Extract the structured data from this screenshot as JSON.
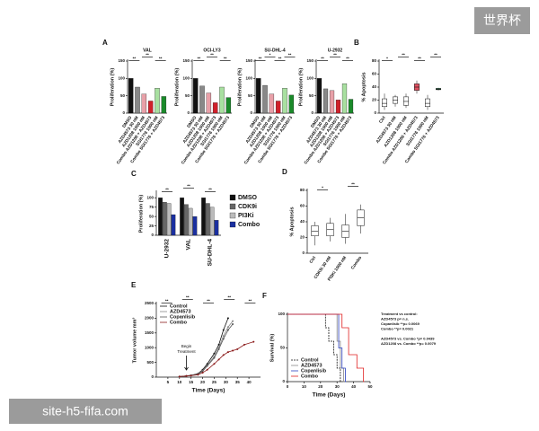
{
  "chart_data": [
    {
      "type": "bar",
      "panel": "A",
      "title": "VAL",
      "y_label": "Proliferation (%)",
      "ylim": [
        0,
        150
      ],
      "yticks": [
        0,
        50,
        100,
        150
      ],
      "categories": [
        "DMSO",
        "AZD4573 30 nM",
        "AZD1208 1000 nM",
        "Combo AZD1208 + AZD4573",
        "SGI1776 1000 nM",
        "Combo SGI1776 + AZD4573"
      ],
      "colors": [
        "#111111",
        "#888888",
        "#e8a0a8",
        "#d0202a",
        "#a8e0a0",
        "#1a8a2a"
      ],
      "values": [
        100,
        75,
        55,
        35,
        72,
        48
      ],
      "sig": [
        "**",
        "**",
        "**"
      ]
    },
    {
      "type": "bar",
      "title": "OCI-LY3",
      "y_label": "Proliferation (%)",
      "ylim": [
        0,
        150
      ],
      "yticks": [
        0,
        50,
        100,
        150
      ],
      "categories": [
        "DMSO",
        "AZD4573 30 nM",
        "AZD1208 1000 nM",
        "Combo AZD1208 + AZD4573",
        "SGI1776 1000 nM",
        "Combo SGI1776 + AZD4573"
      ],
      "colors": [
        "#111111",
        "#888888",
        "#e8a0a8",
        "#d0202a",
        "#a8e0a0",
        "#1a8a2a"
      ],
      "values": [
        100,
        78,
        58,
        30,
        75,
        45
      ],
      "sig": [
        "**",
        "**",
        "**"
      ]
    },
    {
      "type": "bar",
      "title": "SU-DHL-4",
      "y_label": "Proliferation (%)",
      "ylim": [
        0,
        150
      ],
      "yticks": [
        0,
        50,
        100,
        150
      ],
      "categories": [
        "DMSO",
        "AZD4573 30 nM",
        "AZD1208 1000 nM",
        "Combo AZD1208 + AZD4573",
        "SGI1776 1000 nM",
        "Combo SGI1776 + AZD4573"
      ],
      "colors": [
        "#111111",
        "#888888",
        "#e8a0a8",
        "#d0202a",
        "#a8e0a0",
        "#1a8a2a"
      ],
      "values": [
        100,
        80,
        55,
        35,
        72,
        52
      ],
      "sig": [
        "**",
        "*",
        "**",
        "**"
      ]
    },
    {
      "type": "bar",
      "title": "U-2932",
      "y_label": "Proliferation (%)",
      "ylim": [
        0,
        150
      ],
      "yticks": [
        0,
        50,
        100,
        150
      ],
      "categories": [
        "DMSO",
        "AZD4573 30 nM",
        "AZD1208 1000 nM",
        "Combo AZD1208 + AZD4573",
        "SGI1776 1000 nM",
        "Combo SGI1776 + AZD4573"
      ],
      "colors": [
        "#111111",
        "#888888",
        "#e8a0a8",
        "#d0202a",
        "#a8e0a0",
        "#1a8a2a"
      ],
      "values": [
        100,
        70,
        65,
        38,
        85,
        40
      ],
      "sig": [
        "**",
        "**",
        "**"
      ]
    },
    {
      "type": "box",
      "panel": "B",
      "y_label": "% Apoptosis",
      "ylim": [
        0,
        80
      ],
      "yticks": [
        0,
        20,
        40,
        60,
        80
      ],
      "categories": [
        "Ctrl",
        "AZD4573 30 nM",
        "AZD1208 1000 nM",
        "Combo AZD1208 + AZD4573",
        "SGI1776 1000 nM",
        "Combo SGI1776 + AZD4573"
      ],
      "colors": [
        "#ffffff",
        "#ffffff",
        "#ffffff",
        "#e05060",
        "#ffffff",
        "#1a8a4a"
      ],
      "boxes": [
        {
          "min": 5,
          "q1": 10,
          "median": 15,
          "q3": 22,
          "max": 30
        },
        {
          "min": 10,
          "q1": 15,
          "median": 20,
          "q3": 25,
          "max": 28
        },
        {
          "min": 8,
          "q1": 12,
          "median": 18,
          "q3": 25,
          "max": 30
        },
        {
          "min": 30,
          "q1": 35,
          "median": 40,
          "q3": 45,
          "max": 50
        },
        {
          "min": 5,
          "q1": 10,
          "median": 15,
          "q3": 22,
          "max": 28
        },
        {
          "min": 35,
          "q1": 36,
          "median": 37,
          "q3": 38,
          "max": 39
        }
      ],
      "sig": [
        "*",
        "**",
        "**",
        "**"
      ]
    },
    {
      "type": "bar",
      "panel": "C",
      "y_label": "Proliferation (%)",
      "ylim": [
        0,
        115
      ],
      "yticks": [
        0,
        25,
        50,
        75,
        100
      ],
      "categories": [
        "U-2932",
        "VAL",
        "SU-DHL-4"
      ],
      "series": [
        {
          "name": "DMSO",
          "color": "#111111",
          "values": [
            100,
            100,
            100
          ]
        },
        {
          "name": "CDK9i",
          "color": "#666666",
          "values": [
            88,
            82,
            85
          ]
        },
        {
          "name": "PI3Ki",
          "color": "#bbbbbb",
          "values": [
            85,
            72,
            75
          ]
        },
        {
          "name": "Combo",
          "color": "#1a2fa0",
          "values": [
            55,
            50,
            40
          ]
        }
      ],
      "sig": [
        "**",
        "**",
        "**"
      ]
    },
    {
      "type": "box",
      "panel": "D",
      "y_label": "% Apoptosis",
      "ylim": [
        0,
        80
      ],
      "yticks": [
        0,
        20,
        40,
        60,
        80
      ],
      "categories": [
        "Ctrl",
        "CDK9i 30 nM",
        "PI3Ki 1000 nM",
        "Combo"
      ],
      "colors": [
        "#ffffff",
        "#ffffff",
        "#ffffff",
        "#ffffff"
      ],
      "boxes": [
        {
          "min": 10,
          "q1": 22,
          "median": 28,
          "q3": 35,
          "max": 40
        },
        {
          "min": 15,
          "q1": 22,
          "median": 30,
          "q3": 38,
          "max": 45
        },
        {
          "min": 12,
          "q1": 20,
          "median": 28,
          "q3": 36,
          "max": 50
        },
        {
          "min": 25,
          "q1": 35,
          "median": 45,
          "q3": 55,
          "max": 62
        }
      ],
      "sig": [
        "*",
        "**"
      ]
    },
    {
      "type": "line",
      "panel": "E",
      "x_label": "Time (Days)",
      "y_label": "Tumor volume mm³",
      "xlim": [
        0,
        45
      ],
      "xticks": [
        5,
        10,
        15,
        20,
        25,
        30,
        35,
        40
      ],
      "ylim": [
        0,
        2500
      ],
      "yticks": [
        0,
        500,
        1000,
        1500,
        2000,
        2500
      ],
      "x": [
        10,
        13,
        15,
        18,
        20,
        22,
        25,
        27,
        29,
        31,
        33,
        35,
        38,
        42
      ],
      "series": [
        {
          "name": "Control",
          "color": "#111111",
          "values": [
            20,
            40,
            60,
            120,
            250,
            450,
            800,
            1100,
            1600,
            2000,
            null,
            null,
            null,
            null
          ]
        },
        {
          "name": "AZD4573",
          "color": "#888888",
          "values": [
            20,
            40,
            60,
            110,
            220,
            400,
            700,
            1000,
            1400,
            1700,
            1900,
            null,
            null,
            null
          ]
        },
        {
          "name": "Copanlisib",
          "color": "#555555",
          "values": [
            20,
            40,
            60,
            100,
            200,
            380,
            650,
            950,
            1300,
            1600,
            1800,
            null,
            null,
            null
          ]
        },
        {
          "name": "Combo",
          "color": "#8b1a1a",
          "values": [
            20,
            40,
            50,
            80,
            150,
            250,
            450,
            600,
            750,
            850,
            900,
            950,
            1100,
            1200
          ]
        }
      ],
      "annotation": [
        "Begin",
        "Treatment"
      ],
      "sig": [
        "**",
        "**",
        "**",
        "**",
        "**"
      ]
    },
    {
      "type": "step",
      "panel": "F",
      "x_label": "Time (Days)",
      "y_label": "Survival (%)",
      "xlim": [
        0,
        50
      ],
      "xticks": [
        0,
        10,
        20,
        30,
        40,
        50
      ],
      "ylim": [
        0,
        100
      ],
      "yticks": [
        0,
        50,
        100
      ],
      "series": [
        {
          "name": "Control",
          "color": "#111111",
          "dashed": true,
          "x": [
            0,
            23,
            25,
            28,
            30,
            32
          ],
          "values": [
            100,
            80,
            60,
            40,
            20,
            0
          ]
        },
        {
          "name": "AZD4573",
          "color": "#888888",
          "x": [
            0,
            30,
            32,
            34
          ],
          "values": [
            100,
            60,
            20,
            0
          ]
        },
        {
          "name": "Copanlisib",
          "color": "#2a40c0",
          "x": [
            0,
            31,
            33,
            35
          ],
          "values": [
            100,
            50,
            20,
            0
          ]
        },
        {
          "name": "Combo",
          "color": "#e02020",
          "x": [
            0,
            33,
            37,
            42,
            46
          ],
          "values": [
            100,
            80,
            40,
            20,
            0
          ]
        }
      ],
      "annotation": [
        "Treatment vs control:",
        "AZD4573 p= n.s.",
        "Copanlisib **p= 0.0069",
        "Combo **p= 0.0021",
        "",
        "AZD4573 vs. Combo *p= 0.0439",
        "AZD1208 vs. Combo **p= 0.0079"
      ]
    }
  ],
  "watermark_top": "世界杯",
  "watermark_bottom": "site-h5-fifa.com"
}
